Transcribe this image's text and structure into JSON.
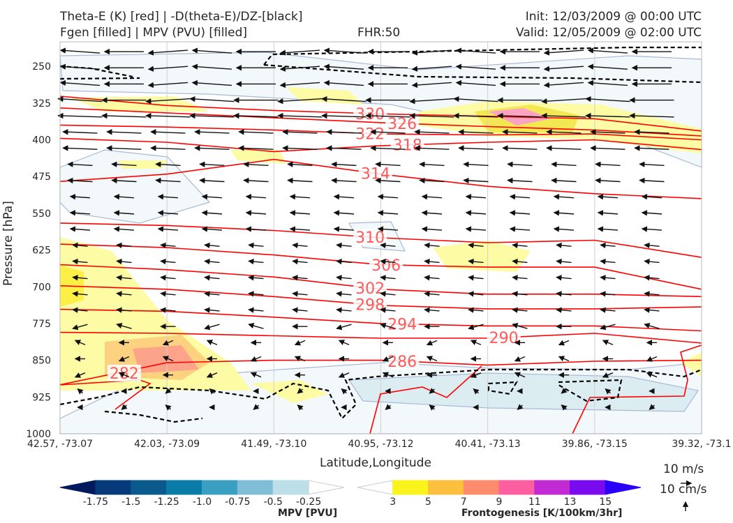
{
  "header": {
    "title_line1": "Theta-E (K) [red] | -D(theta-E)/DZ-[black]",
    "title_line2": "Fgen [filled] | MPV (PVU) [filled]",
    "fhr": "FHR:50",
    "init": "Init: 12/03/2009 @ 00:00 UTC",
    "valid": "Valid: 12/05/2009 @ 02:00 UTC"
  },
  "chart_data": {
    "type": "contour",
    "ylabel": "Pressure [hPa]",
    "xlabel": "Latitude,Longitude",
    "ylim": [
      200,
      1000
    ],
    "yticks": [
      250,
      325,
      400,
      475,
      550,
      625,
      700,
      775,
      850,
      925,
      1000
    ],
    "xticks": [
      "42.57, -73.07",
      "42.03, -73.09",
      "41.49, -73.10",
      "40.95, -73.12",
      "40.41, -73.13",
      "39.86, -73.15",
      "39.32, -73.1"
    ],
    "theta_e": [
      {
        "label": "330",
        "p": [
          311,
          330,
          340,
          347,
          352,
          357,
          382
        ],
        "at": 2.9
      },
      {
        "label": "326",
        "p": [
          335,
          345,
          355,
          365,
          373,
          380,
          392
        ],
        "at": 3.2
      },
      {
        "label": "322",
        "p": [
          370,
          374,
          380,
          388,
          390,
          388,
          400
        ],
        "at": 2.9
      },
      {
        "label": "318",
        "p": [
          397,
          405,
          424,
          412,
          405,
          400,
          420
        ],
        "at": 3.25
      },
      {
        "label": "314",
        "p": [
          485,
          470,
          440,
          470,
          495,
          510,
          520
        ],
        "at": 2.95
      },
      {
        "label": "310",
        "p": [
          570,
          575,
          585,
          600,
          610,
          605,
          640
        ],
        "at": 2.9
      },
      {
        "label": "306",
        "p": [
          613,
          620,
          635,
          655,
          660,
          660,
          705
        ],
        "at": 3.05
      },
      {
        "label": "302",
        "p": [
          655,
          665,
          680,
          705,
          715,
          715,
          720
        ],
        "at": 2.9
      },
      {
        "label": "298",
        "p": [
          698,
          705,
          720,
          738,
          745,
          745,
          741
        ],
        "at": 2.9
      },
      {
        "label": "294",
        "p": [
          746,
          750,
          762,
          775,
          780,
          780,
          790
        ],
        "at": 3.2
      },
      {
        "label": "290",
        "p": [
          793,
          795,
          800,
          805,
          805,
          795,
          815
        ],
        "at": 4.15
      },
      {
        "label": "286",
        "p": [
          900,
          855,
          850,
          850,
          860,
          852,
          850
        ],
        "at": 3.2
      },
      {
        "label": "282",
        "p": [
          960,
          930,
          900,
          null,
          null,
          null,
          null
        ],
        "at": 0.6
      }
    ],
    "wind_u_by_level": [
      -8,
      -9,
      -7,
      -5,
      -4,
      -3,
      -3,
      -3,
      -2,
      -1,
      -1
    ],
    "mpv_colorbar": {
      "label": "MPV [PVU]",
      "ticks": [
        "-1.75",
        "-1.5",
        "-1.25",
        "-1.0",
        "-0.75",
        "-0.5",
        "-0.25"
      ],
      "colors": [
        "#011a5e",
        "#063a7a",
        "#0b5a8e",
        "#0a7ca7",
        "#3a9fc0",
        "#80bdd6",
        "#bddfe8",
        "#ffffff"
      ]
    },
    "fgen_colorbar": {
      "label": "Frontogenesis [K/100km/3hr]",
      "ticks": [
        "3",
        "5",
        "7",
        "9",
        "11",
        "13",
        "15"
      ],
      "colors": [
        "#ffffff",
        "#fbf31c",
        "#fcc03e",
        "#fd8c6c",
        "#fd5fa1",
        "#c22bd4",
        "#7a0bf0",
        "#2a00f8"
      ]
    },
    "vector_key": {
      "horizontal": "10 m/s",
      "vertical": "10 cm/s"
    }
  }
}
